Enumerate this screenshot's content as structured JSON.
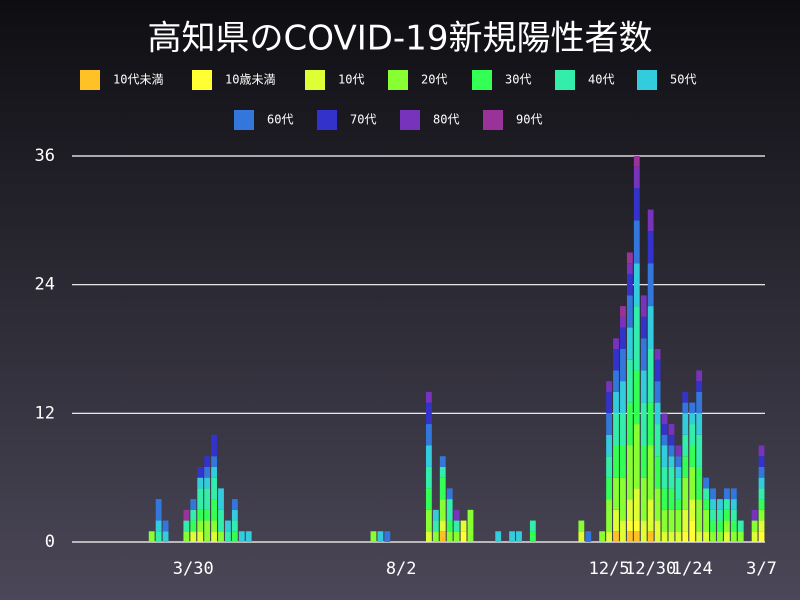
{
  "chart_data": {
    "type": "stacked_bar",
    "title": "高知県のCOVID-19新規陽性者数",
    "categories": [
      null,
      null,
      null,
      null,
      null,
      null,
      null,
      null,
      null,
      null,
      null,
      null,
      null,
      null,
      null,
      null,
      null,
      "3/30",
      null,
      null,
      null,
      null,
      null,
      null,
      null,
      null,
      null,
      null,
      null,
      null,
      null,
      null,
      null,
      null,
      null,
      null,
      null,
      null,
      null,
      null,
      null,
      null,
      null,
      null,
      null,
      null,
      null,
      "8/2",
      null,
      null,
      null,
      null,
      null,
      null,
      null,
      null,
      null,
      null,
      null,
      null,
      null,
      null,
      null,
      null,
      null,
      null,
      null,
      null,
      null,
      null,
      null,
      null,
      null,
      null,
      null,
      null,
      null,
      "12/5",
      null,
      null,
      null,
      null,
      null,
      "12/30",
      null,
      null,
      null,
      null,
      null,
      "1/24",
      null,
      null,
      null,
      null,
      null,
      null,
      null,
      null,
      null,
      "3/7"
    ],
    "series": [
      {
        "name": "10代未満",
        "color": "#ffc125",
        "values": [
          0,
          0,
          0,
          0,
          0,
          0,
          0,
          0,
          0,
          0,
          0,
          0,
          0,
          0,
          0,
          0,
          0,
          0,
          0,
          0,
          0,
          0,
          0,
          0,
          0,
          0,
          0,
          0,
          0,
          0,
          0,
          0,
          0,
          0,
          0,
          0,
          0,
          0,
          0,
          0,
          0,
          0,
          0,
          0,
          0,
          0,
          0,
          0,
          0,
          0,
          0,
          0,
          0,
          1,
          0,
          0,
          0,
          0,
          0,
          0,
          0,
          0,
          0,
          0,
          0,
          0,
          0,
          0,
          0,
          0,
          0,
          0,
          0,
          0,
          0,
          0,
          0,
          0,
          1,
          0,
          1,
          1,
          0,
          1,
          0,
          0,
          0,
          0,
          0,
          0,
          0,
          0,
          0,
          0,
          0,
          0,
          0,
          0,
          0,
          0
        ]
      },
      {
        "name": "10歳未満",
        "color": "#ffff33",
        "values": [
          0,
          0,
          0,
          0,
          0,
          0,
          0,
          0,
          0,
          0,
          0,
          0,
          0,
          0,
          0,
          0,
          0,
          0,
          0,
          0,
          0,
          0,
          0,
          0,
          0,
          0,
          0,
          0,
          0,
          0,
          0,
          0,
          0,
          0,
          0,
          0,
          0,
          0,
          0,
          0,
          0,
          0,
          0,
          0,
          0,
          0,
          0,
          0,
          0,
          0,
          0,
          0,
          0,
          0,
          0,
          0,
          1,
          0,
          0,
          0,
          0,
          0,
          0,
          0,
          0,
          0,
          0,
          0,
          0,
          0,
          0,
          0,
          0,
          0,
          0,
          0,
          0,
          0,
          0,
          0,
          1,
          1,
          0,
          0,
          0,
          0,
          0,
          0,
          1,
          2,
          0,
          0,
          0,
          0,
          0,
          0,
          0,
          0,
          0,
          1
        ]
      },
      {
        "name": "10代",
        "color": "#ddff33",
        "values": [
          0,
          0,
          0,
          0,
          0,
          0,
          0,
          0,
          0,
          0,
          0,
          0,
          0,
          0,
          0,
          0,
          0,
          1,
          1,
          0,
          1,
          0,
          0,
          0,
          0,
          0,
          0,
          0,
          0,
          0,
          0,
          0,
          0,
          0,
          0,
          0,
          0,
          0,
          0,
          0,
          0,
          0,
          0,
          0,
          0,
          0,
          0,
          0,
          0,
          0,
          0,
          1,
          0,
          1,
          0,
          0,
          1,
          0,
          0,
          0,
          0,
          0,
          0,
          0,
          0,
          0,
          0,
          0,
          0,
          0,
          0,
          0,
          0,
          1,
          0,
          0,
          0,
          1,
          2,
          2,
          2,
          3,
          2,
          3,
          2,
          1,
          1,
          1,
          2,
          2,
          1,
          1,
          0,
          0,
          1,
          0,
          0,
          0,
          1,
          1
        ]
      },
      {
        "name": "20代",
        "color": "#88ff33",
        "values": [
          0,
          0,
          0,
          0,
          0,
          0,
          0,
          0,
          0,
          0,
          0,
          1,
          0,
          0,
          0,
          0,
          1,
          0,
          1,
          2,
          1,
          1,
          0,
          0,
          0,
          0,
          0,
          0,
          0,
          0,
          0,
          0,
          0,
          0,
          0,
          0,
          0,
          0,
          0,
          0,
          0,
          0,
          0,
          1,
          0,
          0,
          0,
          0,
          0,
          0,
          0,
          2,
          1,
          2,
          1,
          1,
          0,
          3,
          0,
          0,
          0,
          0,
          0,
          0,
          0,
          0,
          0,
          0,
          0,
          0,
          0,
          0,
          0,
          1,
          0,
          0,
          1,
          3,
          3,
          4,
          5,
          6,
          4,
          5,
          3,
          2,
          2,
          2,
          3,
          3,
          3,
          2,
          1,
          1,
          1,
          1,
          1,
          0,
          1,
          1
        ]
      },
      {
        "name": "30代",
        "color": "#33ff55",
        "values": [
          0,
          0,
          0,
          0,
          0,
          0,
          0,
          0,
          0,
          0,
          0,
          0,
          0,
          0,
          0,
          0,
          0,
          1,
          1,
          1,
          2,
          0,
          0,
          1,
          0,
          0,
          0,
          0,
          0,
          0,
          0,
          0,
          0,
          0,
          0,
          0,
          0,
          0,
          0,
          0,
          0,
          0,
          0,
          0,
          0,
          0,
          0,
          0,
          0,
          0,
          0,
          2,
          0,
          2,
          1,
          0,
          0,
          0,
          0,
          0,
          0,
          0,
          0,
          0,
          0,
          0,
          1,
          0,
          0,
          0,
          0,
          0,
          0,
          0,
          0,
          0,
          0,
          2,
          3,
          3,
          4,
          5,
          3,
          4,
          3,
          2,
          2,
          1,
          2,
          2,
          3,
          1,
          1,
          1,
          1,
          1,
          0,
          0,
          0,
          1
        ]
      },
      {
        "name": "40代",
        "color": "#33eeaa",
        "values": [
          0,
          0,
          0,
          0,
          0,
          0,
          0,
          0,
          0,
          0,
          0,
          0,
          1,
          0,
          0,
          0,
          1,
          1,
          2,
          2,
          2,
          2,
          1,
          1,
          0,
          0,
          0,
          0,
          0,
          0,
          0,
          0,
          0,
          0,
          0,
          0,
          0,
          0,
          0,
          0,
          0,
          0,
          0,
          0,
          0,
          0,
          0,
          0,
          0,
          0,
          0,
          2,
          1,
          1,
          2,
          1,
          0,
          0,
          0,
          0,
          0,
          0,
          0,
          0,
          0,
          0,
          1,
          0,
          0,
          0,
          0,
          0,
          0,
          0,
          0,
          0,
          0,
          2,
          3,
          3,
          4,
          6,
          4,
          5,
          3,
          2,
          2,
          2,
          2,
          2,
          3,
          1,
          1,
          1,
          1,
          1,
          1,
          0,
          0,
          1
        ]
      },
      {
        "name": "50代",
        "color": "#33ccdd",
        "values": [
          0,
          0,
          0,
          0,
          0,
          0,
          0,
          0,
          0,
          0,
          0,
          0,
          1,
          1,
          0,
          0,
          0,
          0,
          1,
          1,
          1,
          2,
          1,
          1,
          1,
          1,
          0,
          0,
          0,
          0,
          0,
          0,
          0,
          0,
          0,
          0,
          0,
          0,
          0,
          0,
          0,
          0,
          0,
          0,
          1,
          0,
          0,
          0,
          0,
          0,
          0,
          2,
          1,
          0,
          0,
          0,
          0,
          0,
          0,
          0,
          0,
          1,
          0,
          1,
          1,
          0,
          0,
          0,
          0,
          0,
          0,
          0,
          0,
          0,
          0,
          0,
          0,
          2,
          2,
          3,
          3,
          4,
          3,
          4,
          2,
          2,
          1,
          1,
          2,
          1,
          2,
          0,
          1,
          1,
          0,
          1,
          0,
          0,
          0,
          1
        ]
      },
      {
        "name": "60代",
        "color": "#3377dd",
        "values": [
          0,
          0,
          0,
          0,
          0,
          0,
          0,
          0,
          0,
          0,
          0,
          0,
          2,
          1,
          0,
          0,
          0,
          1,
          0,
          1,
          1,
          0,
          0,
          1,
          0,
          0,
          0,
          0,
          0,
          0,
          0,
          0,
          0,
          0,
          0,
          0,
          0,
          0,
          0,
          0,
          0,
          0,
          0,
          0,
          0,
          1,
          0,
          0,
          0,
          0,
          0,
          2,
          0,
          1,
          1,
          0,
          0,
          0,
          0,
          0,
          0,
          0,
          0,
          0,
          0,
          0,
          0,
          0,
          0,
          0,
          0,
          0,
          0,
          0,
          1,
          0,
          0,
          2,
          2,
          3,
          3,
          4,
          3,
          4,
          2,
          1,
          1,
          1,
          1,
          1,
          2,
          1,
          1,
          0,
          1,
          1,
          0,
          0,
          0,
          1
        ]
      },
      {
        "name": "70代",
        "color": "#3333cc",
        "values": [
          0,
          0,
          0,
          0,
          0,
          0,
          0,
          0,
          0,
          0,
          0,
          0,
          0,
          0,
          0,
          0,
          0,
          0,
          1,
          1,
          2,
          0,
          0,
          0,
          0,
          0,
          0,
          0,
          0,
          0,
          0,
          0,
          0,
          0,
          0,
          0,
          0,
          0,
          0,
          0,
          0,
          0,
          0,
          0,
          0,
          0,
          0,
          0,
          0,
          0,
          0,
          2,
          0,
          0,
          0,
          0,
          0,
          0,
          0,
          0,
          0,
          0,
          0,
          0,
          0,
          0,
          0,
          0,
          0,
          0,
          0,
          0,
          0,
          0,
          0,
          0,
          0,
          2,
          2,
          2,
          2,
          3,
          2,
          3,
          2,
          1,
          1,
          0,
          1,
          0,
          1,
          0,
          0,
          0,
          0,
          0,
          0,
          0,
          0,
          1
        ]
      },
      {
        "name": "80代",
        "color": "#7733bb",
        "values": [
          0,
          0,
          0,
          0,
          0,
          0,
          0,
          0,
          0,
          0,
          0,
          0,
          0,
          0,
          0,
          0,
          0,
          0,
          0,
          0,
          0,
          0,
          0,
          0,
          0,
          0,
          0,
          0,
          0,
          0,
          0,
          0,
          0,
          0,
          0,
          0,
          0,
          0,
          0,
          0,
          0,
          0,
          0,
          0,
          0,
          0,
          0,
          0,
          0,
          0,
          0,
          1,
          0,
          0,
          0,
          1,
          0,
          0,
          0,
          0,
          0,
          0,
          0,
          0,
          0,
          0,
          0,
          0,
          0,
          0,
          0,
          0,
          0,
          0,
          0,
          0,
          0,
          1,
          1,
          1,
          1,
          2,
          2,
          2,
          1,
          1,
          1,
          1,
          0,
          0,
          1,
          0,
          0,
          0,
          0,
          0,
          0,
          0,
          1,
          1
        ]
      },
      {
        "name": "90代",
        "color": "#993399",
        "values": [
          0,
          0,
          0,
          0,
          0,
          0,
          0,
          0,
          0,
          0,
          0,
          0,
          0,
          0,
          0,
          0,
          1,
          0,
          0,
          0,
          0,
          0,
          0,
          0,
          0,
          0,
          0,
          0,
          0,
          0,
          0,
          0,
          0,
          0,
          0,
          0,
          0,
          0,
          0,
          0,
          0,
          0,
          0,
          0,
          0,
          0,
          0,
          0,
          0,
          0,
          0,
          0,
          0,
          0,
          0,
          0,
          0,
          0,
          0,
          0,
          0,
          0,
          0,
          0,
          0,
          0,
          0,
          0,
          0,
          0,
          0,
          0,
          0,
          0,
          0,
          0,
          0,
          0,
          0,
          1,
          1,
          1,
          0,
          0,
          0,
          0,
          0,
          0,
          0,
          0,
          0,
          0,
          0,
          0,
          0,
          0,
          0,
          0,
          0,
          0
        ]
      }
    ],
    "ylim": [
      0,
      36
    ],
    "yticks": [
      0,
      12,
      24,
      36
    ],
    "grid": true
  }
}
